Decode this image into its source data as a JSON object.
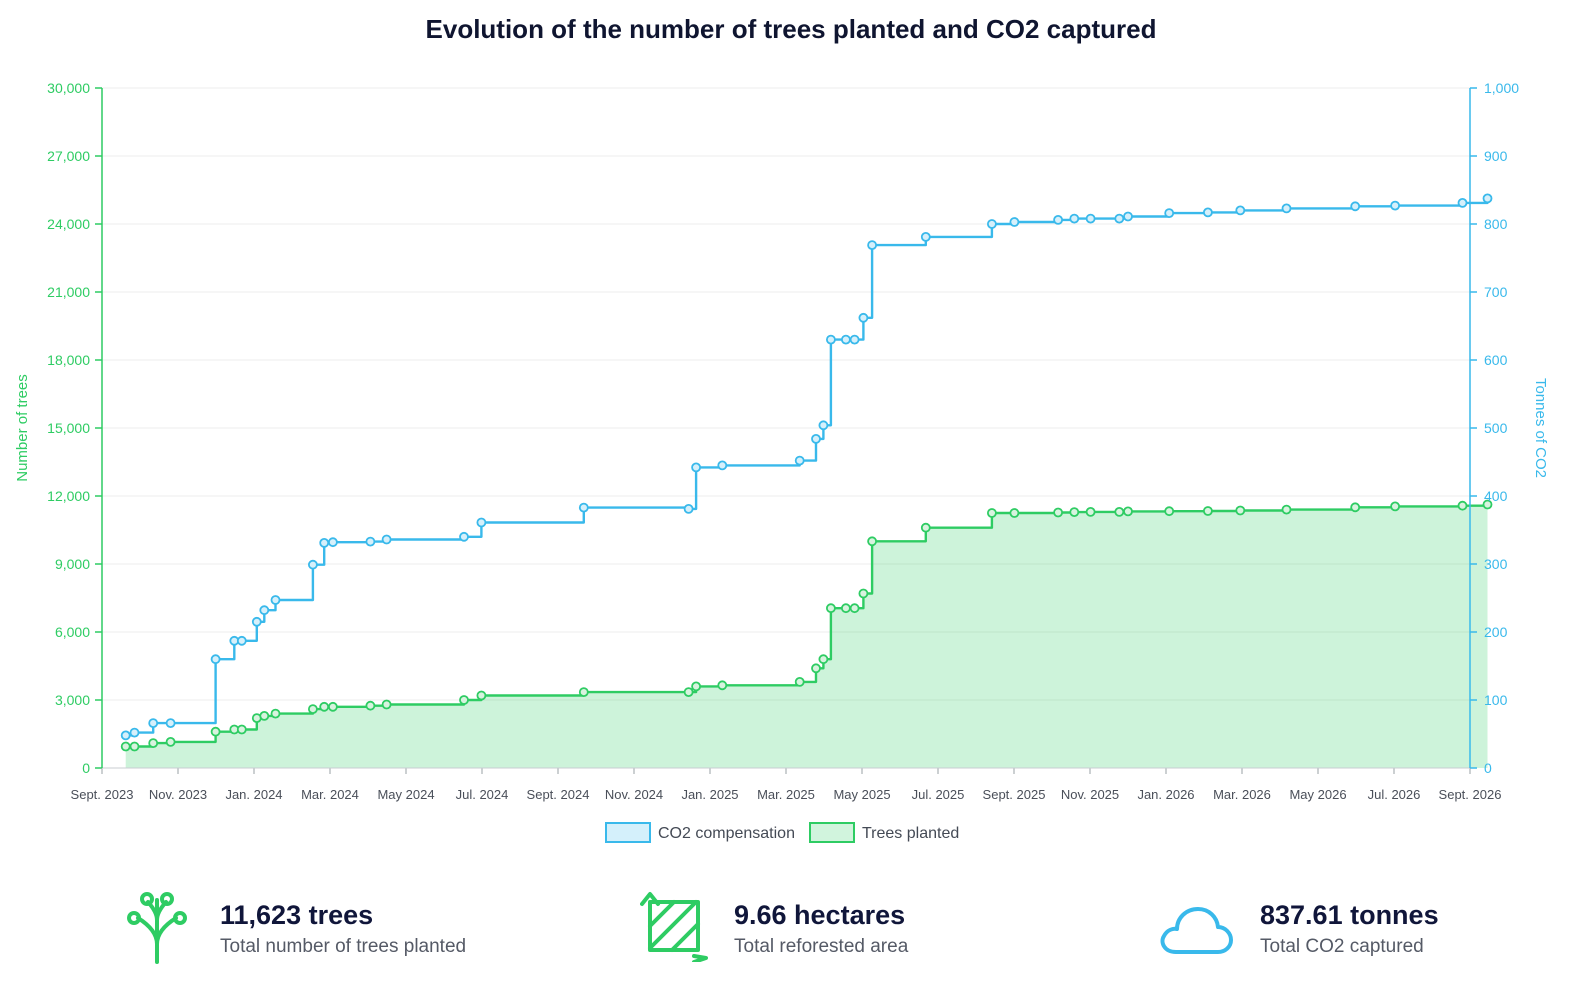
{
  "chart_data": {
    "type": "line",
    "title": "Evolution of the number of trees planted and CO2 captured",
    "x_axis": {
      "start": "2023-09",
      "end": "2026-09",
      "tick_labels": [
        "Sept. 2023",
        "Nov. 2023",
        "Jan. 2024",
        "Mar. 2024",
        "May 2024",
        "Jul. 2024",
        "Sept. 2024",
        "Nov. 2024",
        "Jan. 2025",
        "Mar. 2025",
        "May 2025",
        "Jul. 2025",
        "Sept. 2025",
        "Nov. 2025",
        "Jan. 2026",
        "Mar. 2026",
        "May 2026",
        "Jul. 2026",
        "Sept. 2026"
      ]
    },
    "y_left": {
      "label": "Number of trees",
      "range": [
        0,
        30000
      ],
      "tick_labels": [
        "0",
        "3,000",
        "6,000",
        "9,000",
        "12,000",
        "15,000",
        "18,000",
        "21,000",
        "24,000",
        "27,000",
        "30,000"
      ],
      "color": "#2ecc63"
    },
    "y_right": {
      "label": "Tonnes of CO2",
      "range": [
        0,
        1000
      ],
      "tick_labels": [
        "0",
        "100",
        "200",
        "300",
        "400",
        "500",
        "600",
        "700",
        "800",
        "900",
        "1,000"
      ],
      "color": "#39b9eb"
    },
    "grid": true,
    "legend_position": "bottom-center",
    "series": [
      {
        "name": "CO2 compensation",
        "axis": "right",
        "step": true,
        "style": "step-line",
        "color": "#39b9eb",
        "points": [
          [
            "2023-09-20",
            48
          ],
          [
            "2023-09-27",
            52
          ],
          [
            "2023-10-12",
            66
          ],
          [
            "2023-10-26",
            66
          ],
          [
            "2023-12-01",
            160
          ],
          [
            "2023-12-16",
            187
          ],
          [
            "2023-12-22",
            187
          ],
          [
            "2024-01-03",
            215
          ],
          [
            "2024-01-09",
            232
          ],
          [
            "2024-01-18",
            247
          ],
          [
            "2024-02-17",
            299
          ],
          [
            "2024-02-26",
            331
          ],
          [
            "2024-03-04",
            332
          ],
          [
            "2024-04-03",
            333
          ],
          [
            "2024-04-16",
            336
          ],
          [
            "2024-06-17",
            340
          ],
          [
            "2024-07-01",
            361
          ],
          [
            "2024-09-21",
            383
          ],
          [
            "2024-12-14",
            381
          ],
          [
            "2024-12-20",
            442
          ],
          [
            "2025-01-10",
            445
          ],
          [
            "2025-03-13",
            452
          ],
          [
            "2025-03-26",
            484
          ],
          [
            "2025-04-01",
            504
          ],
          [
            "2025-04-07",
            630
          ],
          [
            "2025-04-19",
            630
          ],
          [
            "2025-04-26",
            630
          ],
          [
            "2025-05-03",
            662
          ],
          [
            "2025-05-10",
            769
          ],
          [
            "2025-06-22",
            781
          ],
          [
            "2025-08-14",
            800
          ],
          [
            "2025-09-01",
            803
          ],
          [
            "2025-10-06",
            806
          ],
          [
            "2025-10-19",
            808
          ],
          [
            "2025-11-01",
            808
          ],
          [
            "2025-11-24",
            808
          ],
          [
            "2025-12-01",
            811
          ],
          [
            "2026-01-03",
            816
          ],
          [
            "2026-02-03",
            817
          ],
          [
            "2026-03-01",
            820
          ],
          [
            "2026-04-07",
            823
          ],
          [
            "2026-06-01",
            826
          ],
          [
            "2026-07-03",
            827
          ],
          [
            "2026-08-26",
            831
          ],
          [
            "2026-09-15",
            837.61
          ]
        ]
      },
      {
        "name": "Trees planted",
        "axis": "left",
        "step": true,
        "style": "step-area",
        "color": "#2ecc63",
        "points": [
          [
            "2023-09-20",
            950
          ],
          [
            "2023-09-27",
            950
          ],
          [
            "2023-10-12",
            1100
          ],
          [
            "2023-10-26",
            1150
          ],
          [
            "2023-12-01",
            1600
          ],
          [
            "2023-12-16",
            1700
          ],
          [
            "2023-12-22",
            1700
          ],
          [
            "2024-01-03",
            2200
          ],
          [
            "2024-01-09",
            2300
          ],
          [
            "2024-01-18",
            2400
          ],
          [
            "2024-02-17",
            2600
          ],
          [
            "2024-02-26",
            2700
          ],
          [
            "2024-03-04",
            2700
          ],
          [
            "2024-04-03",
            2750
          ],
          [
            "2024-04-16",
            2800
          ],
          [
            "2024-06-17",
            3000
          ],
          [
            "2024-07-01",
            3200
          ],
          [
            "2024-09-21",
            3350
          ],
          [
            "2024-12-14",
            3350
          ],
          [
            "2024-12-20",
            3600
          ],
          [
            "2025-01-10",
            3650
          ],
          [
            "2025-03-13",
            3800
          ],
          [
            "2025-03-26",
            4400
          ],
          [
            "2025-04-01",
            4800
          ],
          [
            "2025-04-07",
            7050
          ],
          [
            "2025-04-19",
            7050
          ],
          [
            "2025-04-26",
            7050
          ],
          [
            "2025-05-03",
            7700
          ],
          [
            "2025-05-10",
            10000
          ],
          [
            "2025-06-22",
            10600
          ],
          [
            "2025-08-14",
            11250
          ],
          [
            "2025-09-01",
            11250
          ],
          [
            "2025-10-06",
            11270
          ],
          [
            "2025-10-19",
            11290
          ],
          [
            "2025-11-01",
            11300
          ],
          [
            "2025-11-24",
            11300
          ],
          [
            "2025-12-01",
            11320
          ],
          [
            "2026-01-03",
            11330
          ],
          [
            "2026-02-03",
            11340
          ],
          [
            "2026-03-01",
            11360
          ],
          [
            "2026-04-07",
            11400
          ],
          [
            "2026-06-01",
            11500
          ],
          [
            "2026-07-03",
            11540
          ],
          [
            "2026-08-26",
            11570
          ],
          [
            "2026-09-15",
            11623
          ]
        ]
      }
    ]
  },
  "legend": [
    {
      "label": "CO2 compensation",
      "color": "#39b9eb"
    },
    {
      "label": "Trees planted",
      "color": "#2ecc63"
    }
  ],
  "stats": [
    {
      "icon": "tree-icon",
      "value": "11,623 trees",
      "label": "Total number of trees planted",
      "color": "#2ecc63"
    },
    {
      "icon": "area-icon",
      "value": "9.66 hectares",
      "label": "Total reforested area",
      "color": "#2ecc63"
    },
    {
      "icon": "cloud-icon",
      "value": "837.61 tonnes",
      "label": "Total CO2 captured",
      "color": "#39b9eb"
    }
  ]
}
